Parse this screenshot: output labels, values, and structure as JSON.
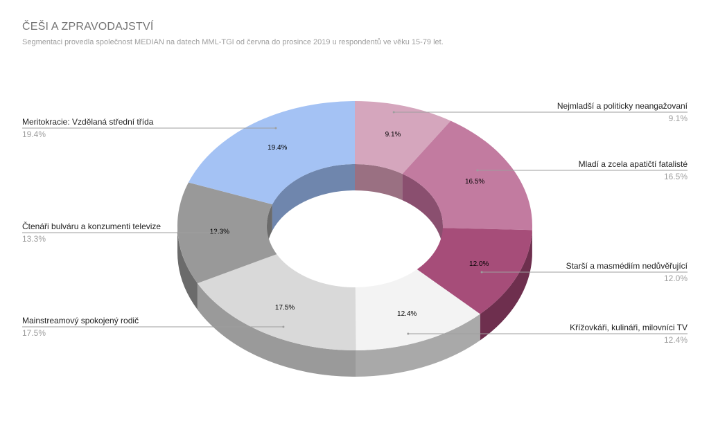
{
  "chart_data": {
    "type": "pie",
    "title": "ČEŠI A ZPRAVODAJSTVÍ",
    "subtitle": "Segmentaci provedla společnost MEDIAN na datech MML-TGI od června do prosince 2019 u respondentů ve věku 15-79 let.",
    "slices": [
      {
        "name": "Nejmladší a politicky neangažovaní",
        "value": 9.1,
        "label": "9.1%",
        "color": "#d5a6bd",
        "side": "#9a7082",
        "legend": "right"
      },
      {
        "name": "Mladí a zcela apatičtí fatalisté",
        "value": 16.5,
        "label": "16.5%",
        "color": "#c27ba0",
        "side": "#8a4f6f",
        "legend": "right"
      },
      {
        "name": "Starší a masmédiím nedůvěřující",
        "value": 12.0,
        "label": "12.0%",
        "color": "#a64d79",
        "side": "#6e2f4e",
        "legend": "right"
      },
      {
        "name": "Křížovkáři, kulináři, milovníci TV",
        "value": 12.4,
        "label": "12.4%",
        "color": "#f3f3f3",
        "side": "#a9a9a9",
        "legend": "right"
      },
      {
        "name": "Mainstreamový spokojený rodič",
        "value": 17.5,
        "label": "17.5%",
        "color": "#d9d9d9",
        "side": "#9a9a9a",
        "legend": "left"
      },
      {
        "name": "Čtenáři bulváru a konzumenti televize",
        "value": 13.3,
        "label": "13.3%",
        "color": "#999999",
        "side": "#6b6b6b",
        "legend": "left"
      },
      {
        "name": "Meritokracie: Vzdělaná střední třída",
        "value": 19.4,
        "label": "19.4%",
        "color": "#a4c2f4",
        "side": "#6f86ad",
        "legend": "left"
      }
    ],
    "donut": true,
    "three_d": true
  }
}
